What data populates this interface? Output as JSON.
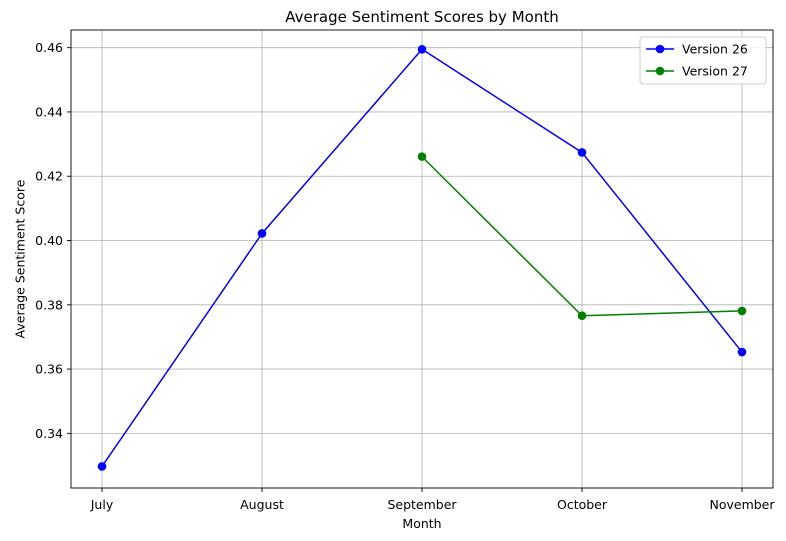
{
  "chart_data": {
    "type": "line",
    "title": "Average Sentiment Scores by Month",
    "xlabel": "Month",
    "ylabel": "Average Sentiment Score",
    "categories": [
      "July",
      "August",
      "September",
      "October",
      "November"
    ],
    "ylim": [
      0.323,
      0.4655
    ],
    "yticks": [
      0.34,
      0.36,
      0.38,
      0.4,
      0.42,
      0.44,
      0.46
    ],
    "ytick_labels": [
      "0.34",
      "0.36",
      "0.38",
      "0.40",
      "0.42",
      "0.44",
      "0.46"
    ],
    "grid": true,
    "legend_position": "top-right",
    "series": [
      {
        "name": "Version 26",
        "color": "#0000ff",
        "marker": "circle",
        "values": [
          0.3297,
          0.4022,
          0.4595,
          0.4274,
          0.3653
        ]
      },
      {
        "name": "Version 27",
        "color": "#008000",
        "marker": "circle",
        "values": [
          null,
          null,
          0.4261,
          0.3766,
          0.3781
        ]
      }
    ]
  }
}
